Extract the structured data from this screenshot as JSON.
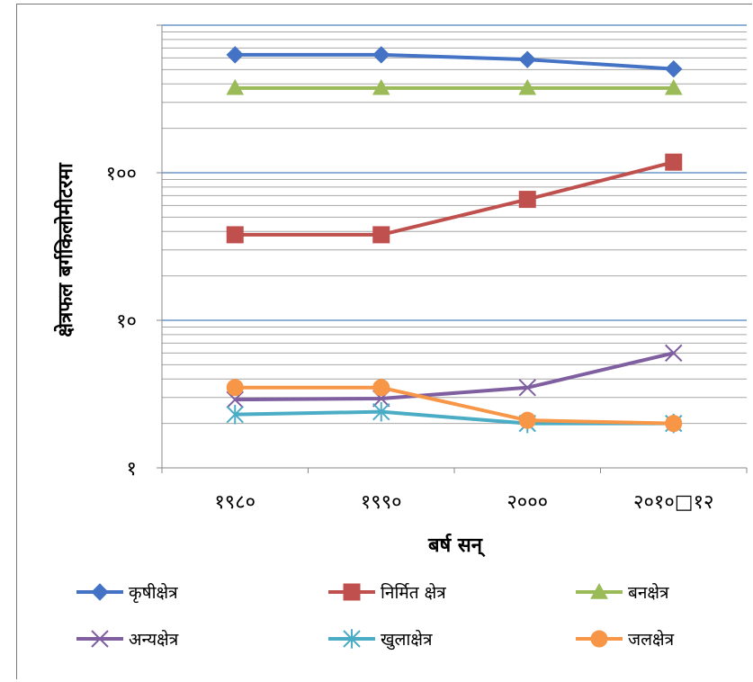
{
  "chart_data": {
    "type": "line",
    "title": "",
    "xlabel": "बर्ष सन्",
    "ylabel": "क्षेत्रफल बर्गकिलोमीटरमा",
    "y_scale": "log",
    "ylim": [
      1,
      1000
    ],
    "y_ticks": [
      {
        "value": 1,
        "label": "१"
      },
      {
        "value": 10,
        "label": "१०"
      },
      {
        "value": 100,
        "label": "१००"
      }
    ],
    "categories": [
      "१९८०",
      "१९९०",
      "२०००",
      "२०१०□१२"
    ],
    "legend_position": "bottom",
    "grid": true,
    "series": [
      {
        "name": "कृषीक्षेत्र",
        "color": "#4472C4",
        "marker": "diamond",
        "values": [
          630,
          630,
          585,
          505
        ]
      },
      {
        "name": "निर्मित क्षेत्र",
        "color": "#C0504D",
        "marker": "square",
        "values": [
          38,
          38,
          66,
          118
        ]
      },
      {
        "name": "बनक्षेत्र",
        "color": "#9BBB59",
        "marker": "triangle",
        "values": [
          375,
          375,
          375,
          375
        ]
      },
      {
        "name": "अन्यक्षेत्र",
        "color": "#7F5FA0",
        "marker": "x",
        "values": [
          2.9,
          2.95,
          3.5,
          6.0
        ]
      },
      {
        "name": "खुलाक्षेत्र",
        "color": "#4BACC6",
        "marker": "star",
        "values": [
          2.3,
          2.4,
          2.0,
          2.0
        ]
      },
      {
        "name": "जलक्षेत्र",
        "color": "#F79646",
        "marker": "circle",
        "values": [
          3.5,
          3.5,
          2.1,
          2.0
        ]
      }
    ]
  }
}
